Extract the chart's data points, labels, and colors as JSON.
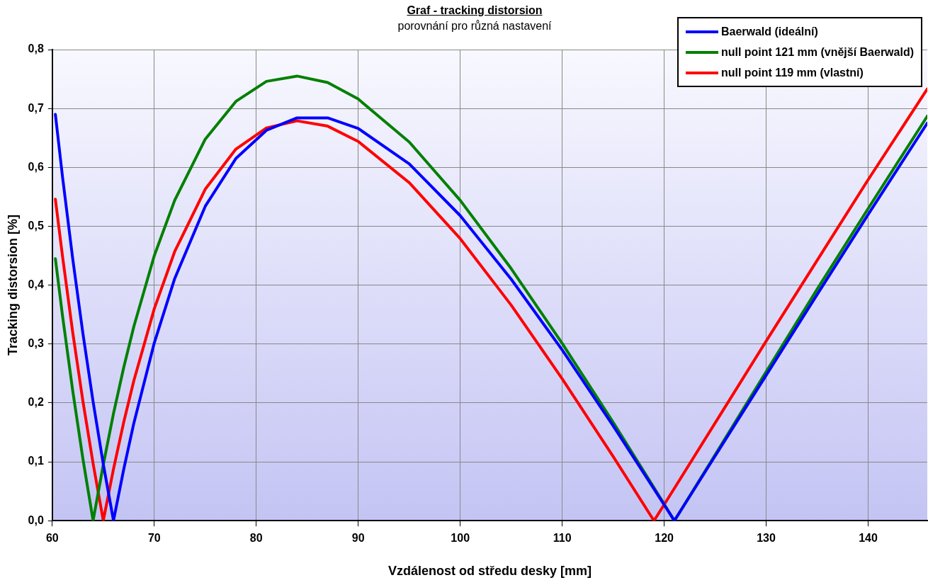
{
  "chart_data": {
    "type": "line",
    "title": "Graf - tracking distorsion",
    "subtitle": "porovnání pro různá nastavení",
    "xlabel": "Vzdálenost od středu desky [mm]",
    "ylabel": "Tracking distorsion [%]",
    "x": [
      60.3,
      61,
      62,
      63,
      64,
      65,
      66,
      67,
      68,
      70,
      72,
      75,
      78,
      81,
      84,
      87,
      90,
      95,
      100,
      105,
      110,
      115,
      119,
      121,
      125,
      130,
      135,
      140,
      145.8
    ],
    "series": [
      {
        "name": "Baerwald (ideální)",
        "color": "#0000ff",
        "values": [
          0.69,
          0.584,
          0.445,
          0.318,
          0.202,
          0.096,
          0,
          0.087,
          0.166,
          0.302,
          0.411,
          0.534,
          0.615,
          0.663,
          0.684,
          0.684,
          0.666,
          0.606,
          0.518,
          0.41,
          0.29,
          0.161,
          0.054,
          0,
          0.11,
          0.247,
          0.384,
          0.52,
          0.675
        ]
      },
      {
        "name": "null point 121 mm (vnější Baerwald)",
        "color": "#008000",
        "values": [
          0.445,
          0.348,
          0.221,
          0.105,
          0,
          0.095,
          0.182,
          0.26,
          0.33,
          0.45,
          0.544,
          0.648,
          0.712,
          0.746,
          0.755,
          0.744,
          0.716,
          0.643,
          0.544,
          0.428,
          0.301,
          0.167,
          0.056,
          0,
          0.112,
          0.253,
          0.393,
          0.53,
          0.687
        ]
      },
      {
        "name": "null point 119 mm (vlastní)",
        "color": "#ff0000",
        "values": [
          0.546,
          0.449,
          0.32,
          0.203,
          0.097,
          0,
          0.088,
          0.167,
          0.238,
          0.36,
          0.457,
          0.563,
          0.631,
          0.667,
          0.679,
          0.67,
          0.644,
          0.574,
          0.479,
          0.366,
          0.241,
          0.109,
          0,
          0.055,
          0.166,
          0.305,
          0.442,
          0.579,
          0.733
        ]
      }
    ],
    "xlim": [
      60,
      145.8
    ],
    "xticks": [
      60,
      70,
      80,
      90,
      100,
      110,
      120,
      130,
      140
    ],
    "ylim": [
      0,
      0.8
    ],
    "yticks": [
      {
        "value": 0,
        "label": "0,0"
      },
      {
        "value": 0.1,
        "label": "0,1"
      },
      {
        "value": 0.2,
        "label": "0,2"
      },
      {
        "value": 0.3,
        "label": "0,3"
      },
      {
        "value": 0.4,
        "label": "0,4"
      },
      {
        "value": 0.5,
        "label": "0,5"
      },
      {
        "value": 0.6,
        "label": "0,6"
      },
      {
        "value": 0.7,
        "label": "0,7"
      },
      {
        "value": 0.8,
        "label": "0,8"
      }
    ],
    "grid": true,
    "legend": "top right",
    "marker": "none",
    "line_style": "solid"
  }
}
